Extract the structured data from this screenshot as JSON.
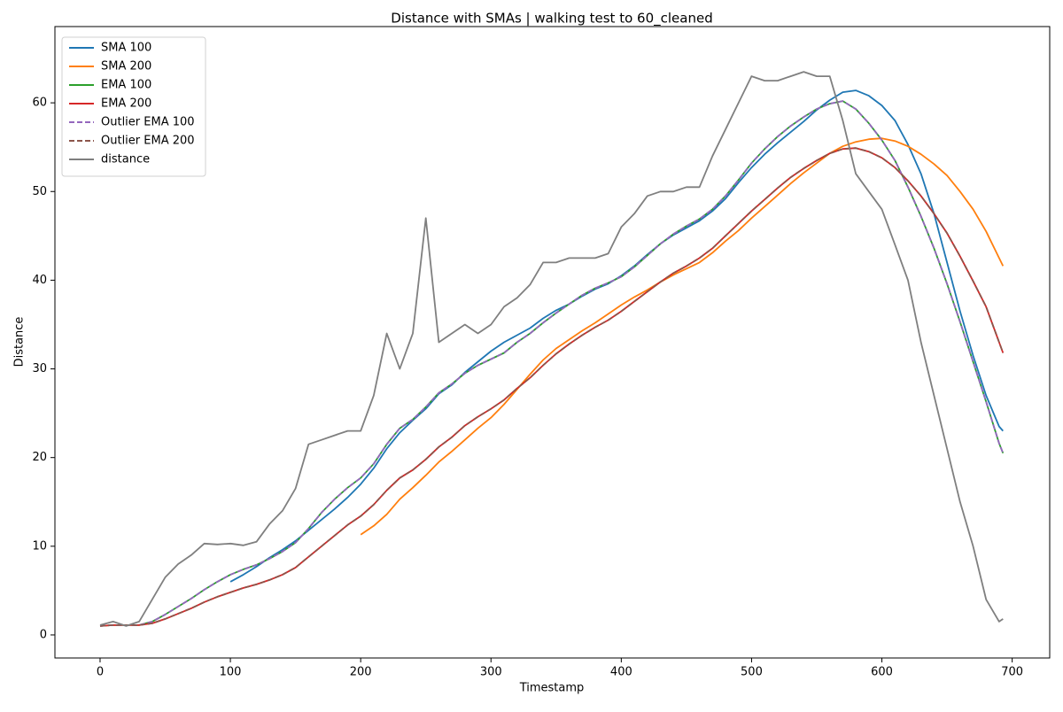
{
  "chart_data": {
    "type": "line",
    "title": "Distance with SMAs | walking test to 60_cleaned",
    "xlabel": "Timestamp",
    "ylabel": "Distance",
    "xlim": [
      -34.65,
      728.8
    ],
    "ylim": [
      -2.6,
      68.6
    ],
    "xticks": [
      0,
      100,
      200,
      300,
      400,
      500,
      600,
      700
    ],
    "yticks": [
      0,
      10,
      20,
      30,
      40,
      50,
      60
    ],
    "grid": false,
    "legend": "upper left",
    "x": [
      0,
      10,
      20,
      30,
      40,
      50,
      60,
      70,
      80,
      90,
      100,
      110,
      120,
      130,
      140,
      150,
      160,
      170,
      180,
      190,
      200,
      210,
      220,
      230,
      240,
      250,
      260,
      270,
      280,
      290,
      300,
      310,
      320,
      330,
      340,
      350,
      360,
      370,
      380,
      390,
      400,
      410,
      420,
      430,
      440,
      450,
      460,
      470,
      480,
      490,
      500,
      510,
      520,
      530,
      540,
      550,
      560,
      570,
      580,
      590,
      600,
      610,
      620,
      630,
      640,
      650,
      660,
      670,
      680,
      690,
      693
    ],
    "series": [
      {
        "name": "SMA 100",
        "color": "#1f77b4",
        "dashed": false,
        "values": [
          null,
          null,
          null,
          null,
          null,
          null,
          null,
          null,
          null,
          null,
          6,
          6.8,
          7.7,
          8.7,
          9.6,
          10.6,
          11.8,
          13,
          14.2,
          15.5,
          17,
          18.8,
          21,
          22.8,
          24.2,
          25.5,
          27.2,
          28.2,
          29.6,
          30.8,
          32,
          33,
          33.8,
          34.6,
          35.7,
          36.6,
          37.3,
          38.2,
          39,
          39.6,
          40.5,
          41.6,
          42.9,
          44.1,
          45.1,
          45.9,
          46.7,
          47.8,
          49.2,
          51,
          52.7,
          54.2,
          55.5,
          56.7,
          57.9,
          59.2,
          60.3,
          61.2,
          61.4,
          60.8,
          59.7,
          58,
          55.3,
          52,
          47.5,
          42,
          36.5,
          31.5,
          27,
          23.5,
          23
        ]
      },
      {
        "name": "SMA 200",
        "color": "#ff7f0e",
        "dashed": false,
        "values": [
          null,
          null,
          null,
          null,
          null,
          null,
          null,
          null,
          null,
          null,
          null,
          null,
          null,
          null,
          null,
          null,
          null,
          null,
          null,
          null,
          11.3,
          12.3,
          13.6,
          15.3,
          16.6,
          18,
          19.5,
          20.7,
          22,
          23.3,
          24.5,
          26,
          27.7,
          29.4,
          31,
          32.3,
          33.3,
          34.3,
          35.2,
          36.2,
          37.2,
          38.1,
          38.9,
          39.8,
          40.6,
          41.3,
          42,
          43.1,
          44.4,
          45.6,
          47,
          48.3,
          49.6,
          50.9,
          52.1,
          53.2,
          54.3,
          55.1,
          55.6,
          55.9,
          56,
          55.7,
          55.1,
          54.2,
          53.1,
          51.8,
          50,
          48,
          45.5,
          42.5,
          41.6
        ]
      },
      {
        "name": "EMA 100",
        "color": "#2ca02c",
        "dashed": false,
        "values": [
          1,
          1.1,
          1.1,
          1.1,
          1.5,
          2.3,
          3.2,
          4.1,
          5.1,
          6,
          6.8,
          7.4,
          7.9,
          8.6,
          9.4,
          10.4,
          12,
          13.8,
          15.3,
          16.6,
          17.7,
          19.3,
          21.5,
          23.3,
          24.3,
          25.7,
          27.3,
          28.3,
          29.5,
          30.4,
          31.1,
          31.8,
          33,
          34,
          35.2,
          36.3,
          37.3,
          38.3,
          39.1,
          39.7,
          40.4,
          41.5,
          42.8,
          44.1,
          45.2,
          46.1,
          46.9,
          48,
          49.5,
          51.3,
          53.2,
          54.8,
          56.2,
          57.4,
          58.4,
          59.3,
          59.9,
          60.2,
          59.3,
          57.7,
          55.8,
          53.5,
          50.5,
          47.2,
          43.6,
          39.6,
          35.3,
          30.8,
          26.3,
          21.6,
          20.5
        ]
      },
      {
        "name": "EMA 200",
        "color": "#d62728",
        "dashed": false,
        "values": [
          1,
          1.1,
          1.1,
          1.1,
          1.3,
          1.8,
          2.4,
          3,
          3.7,
          4.3,
          4.8,
          5.3,
          5.7,
          6.2,
          6.8,
          7.6,
          8.8,
          10,
          11.2,
          12.4,
          13.4,
          14.7,
          16.3,
          17.7,
          18.6,
          19.8,
          21.2,
          22.3,
          23.6,
          24.6,
          25.5,
          26.5,
          27.8,
          29,
          30.4,
          31.7,
          32.8,
          33.8,
          34.7,
          35.5,
          36.5,
          37.6,
          38.7,
          39.8,
          40.8,
          41.6,
          42.5,
          43.6,
          45,
          46.4,
          47.8,
          49.1,
          50.4,
          51.6,
          52.6,
          53.5,
          54.3,
          54.8,
          54.9,
          54.5,
          53.8,
          52.7,
          51.2,
          49.5,
          47.5,
          45.3,
          42.7,
          39.9,
          37,
          33,
          31.8
        ]
      },
      {
        "name": "Outlier EMA 100",
        "color": "#9467bd",
        "dashed": true,
        "values": [
          1,
          1.1,
          1.1,
          1.1,
          1.5,
          2.3,
          3.2,
          4.1,
          5.1,
          6,
          6.8,
          7.4,
          7.9,
          8.6,
          9.4,
          10.4,
          12,
          13.8,
          15.3,
          16.6,
          17.7,
          19.3,
          21.5,
          23.3,
          24.3,
          25.7,
          27.3,
          28.3,
          29.5,
          30.4,
          31.1,
          31.8,
          33,
          34,
          35.2,
          36.3,
          37.3,
          38.3,
          39.1,
          39.7,
          40.4,
          41.5,
          42.8,
          44.1,
          45.2,
          46.1,
          46.9,
          48,
          49.5,
          51.3,
          53.2,
          54.8,
          56.2,
          57.4,
          58.4,
          59.3,
          59.9,
          60.2,
          59.3,
          57.7,
          55.8,
          53.5,
          50.5,
          47.2,
          43.6,
          39.6,
          35.3,
          30.8,
          26.3,
          21.6,
          20.5
        ]
      },
      {
        "name": "Outlier EMA 200",
        "color": "#8c564b",
        "dashed": true,
        "values": [
          1,
          1.1,
          1.1,
          1.1,
          1.3,
          1.8,
          2.4,
          3,
          3.7,
          4.3,
          4.8,
          5.3,
          5.7,
          6.2,
          6.8,
          7.6,
          8.8,
          10,
          11.2,
          12.4,
          13.4,
          14.7,
          16.3,
          17.7,
          18.6,
          19.8,
          21.2,
          22.3,
          23.6,
          24.6,
          25.5,
          26.5,
          27.8,
          29,
          30.4,
          31.7,
          32.8,
          33.8,
          34.7,
          35.5,
          36.5,
          37.6,
          38.7,
          39.8,
          40.8,
          41.6,
          42.5,
          43.6,
          45,
          46.4,
          47.8,
          49.1,
          50.4,
          51.6,
          52.6,
          53.5,
          54.3,
          54.8,
          54.9,
          54.5,
          53.8,
          52.7,
          51.2,
          49.5,
          47.5,
          45.3,
          42.7,
          39.9,
          37,
          33,
          31.8
        ]
      },
      {
        "name": "distance",
        "color": "#7f7f7f",
        "dashed": false,
        "values": [
          1.1,
          1.5,
          1,
          1.5,
          4,
          6.5,
          8,
          9,
          10.3,
          10.2,
          10.3,
          10.1,
          10.5,
          12.5,
          14,
          16.5,
          21.5,
          22,
          22.5,
          23,
          23,
          27,
          34,
          30,
          34,
          47,
          33,
          34,
          35,
          34,
          35,
          37,
          38,
          39.5,
          42,
          42,
          42.5,
          42.5,
          42.5,
          43,
          46,
          47.5,
          49.5,
          50,
          50,
          50.5,
          50.5,
          54,
          57,
          60,
          63,
          62.5,
          62.5,
          63,
          63.5,
          63,
          63,
          58,
          52,
          50,
          48,
          44,
          40,
          33,
          27,
          21,
          15,
          10,
          4,
          1.5,
          1.8
        ]
      }
    ]
  }
}
